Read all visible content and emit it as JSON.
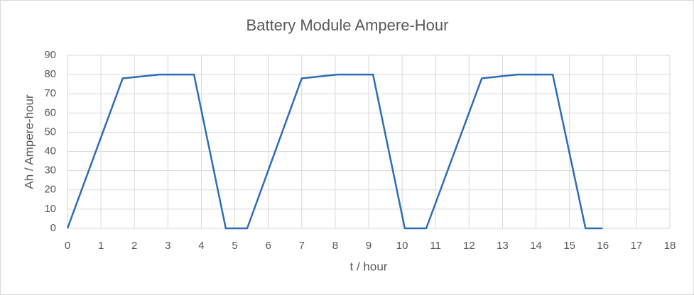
{
  "chart_data": {
    "type": "line",
    "title": "Battery Module Ampere-Hour",
    "x_label": "t / hour",
    "y_label": "Ah / Ampere-hour",
    "x": [
      0,
      1.65,
      2.75,
      3.78,
      4.73,
      5.37,
      7.0,
      8.07,
      9.13,
      10.08,
      10.72,
      12.38,
      13.44,
      14.5,
      15.48,
      15.99
    ],
    "series": [
      {
        "name": "Ah",
        "color": "#2e6db4",
        "values": [
          0,
          78,
          80,
          80,
          0,
          0,
          78,
          80,
          80,
          0,
          0,
          78,
          80,
          80,
          0,
          0
        ]
      }
    ],
    "xlim": [
      0,
      18
    ],
    "xticks": [
      0,
      1,
      2,
      3,
      4,
      5,
      6,
      7,
      8,
      9,
      10,
      11,
      12,
      13,
      14,
      15,
      16,
      17,
      18
    ],
    "ylim": [
      0,
      90
    ],
    "yticks": [
      0,
      10,
      20,
      30,
      40,
      50,
      60,
      70,
      80,
      90
    ],
    "grid": true
  }
}
